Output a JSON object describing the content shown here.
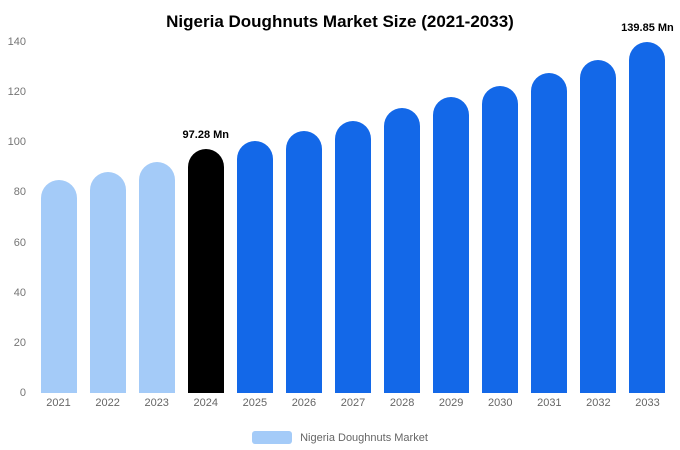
{
  "title": "Nigeria Doughnuts Market Size (2021-2033)",
  "legend": {
    "label": "Nigeria Doughnuts Market",
    "swatch_color": "#a4cbf8"
  },
  "colors": {
    "light_blue": "#a4cbf8",
    "bright_blue": "#1368e8",
    "black": "#000000"
  },
  "chart_data": {
    "type": "bar",
    "title": "Nigeria Doughnuts Market Size (2021-2033)",
    "xlabel": "",
    "ylabel": "",
    "categories": [
      "2021",
      "2022",
      "2023",
      "2024",
      "2025",
      "2026",
      "2027",
      "2028",
      "2029",
      "2030",
      "2031",
      "2032",
      "2033"
    ],
    "values": [
      85,
      88,
      92,
      97.28,
      100.5,
      104.5,
      108.5,
      113.5,
      118,
      122.5,
      127.5,
      133,
      139.85
    ],
    "bar_colors": [
      "#a4cbf8",
      "#a4cbf8",
      "#a4cbf8",
      "#000000",
      "#1368e8",
      "#1368e8",
      "#1368e8",
      "#1368e8",
      "#1368e8",
      "#1368e8",
      "#1368e8",
      "#1368e8",
      "#1368e8"
    ],
    "annotations": [
      {
        "index": 3,
        "text": "97.28 Mn"
      },
      {
        "index": 12,
        "text": "139.85 Mn"
      }
    ],
    "ylim": [
      0,
      140
    ],
    "yticks": [
      0,
      20,
      40,
      60,
      80,
      100,
      120,
      140
    ],
    "grid": false,
    "legend_position": "bottom",
    "legend_entries": [
      "Nigeria Doughnuts Market"
    ]
  }
}
